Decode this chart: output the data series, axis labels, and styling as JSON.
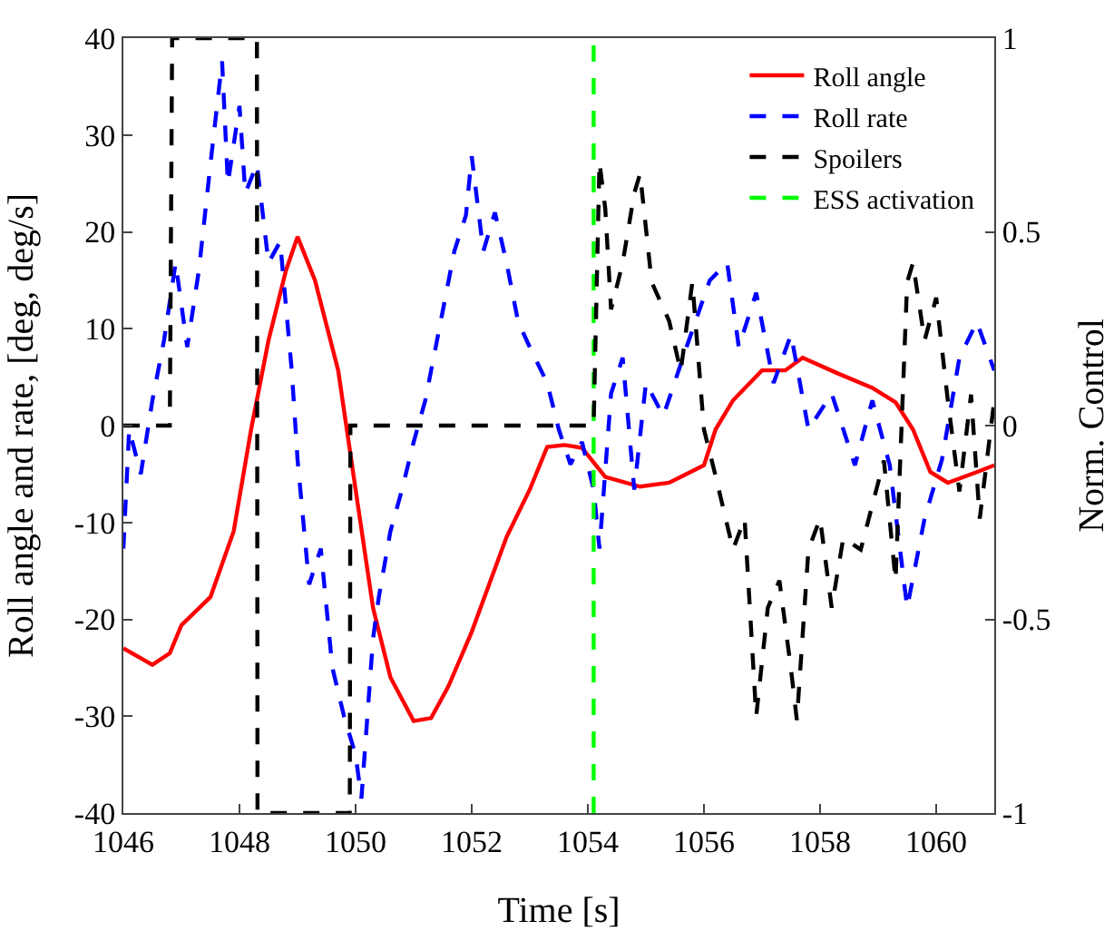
{
  "chart_data": {
    "type": "line",
    "xlabel": "Time [s]",
    "ylabel": "Roll angle and rate, [deg, deg/s]",
    "y2label": "Norm. Control",
    "xlim": [
      1046,
      1061
    ],
    "xticks": [
      1046,
      1048,
      1050,
      1052,
      1054,
      1056,
      1058,
      1060
    ],
    "ylim": [
      -40,
      40
    ],
    "yticks": [
      -40,
      -30,
      -20,
      -10,
      0,
      10,
      20,
      30,
      40
    ],
    "y2lim": [
      -1,
      1
    ],
    "y2ticks": [
      -1,
      -0.5,
      0,
      0.5,
      1
    ],
    "grid": false,
    "legend": "top right",
    "marker": "none",
    "series": [
      {
        "name": "Roll angle",
        "color": "#ff0000",
        "line_style": "solid",
        "x": [
          1046,
          1046.5,
          1046.8,
          1047,
          1047.5,
          1047.9,
          1048.2,
          1048.5,
          1048.8,
          1049,
          1049.3,
          1049.7,
          1050,
          1050.3,
          1050.6,
          1051,
          1051.3,
          1051.6,
          1052,
          1052.3,
          1052.6,
          1053,
          1053.3,
          1053.6,
          1053.9,
          1054.3,
          1054.9,
          1055.4,
          1056,
          1056.2,
          1056.5,
          1057,
          1057.4,
          1057.7,
          1058.3,
          1058.9,
          1059.3,
          1059.6,
          1059.9,
          1060.2,
          1060.7,
          1061
        ],
        "values": [
          -23,
          -24.7,
          -23.5,
          -20.6,
          -17.7,
          -10.9,
          -0.4,
          8.8,
          16,
          19.5,
          15,
          5.7,
          -6.6,
          -18.8,
          -26,
          -30.5,
          -30.2,
          -26.9,
          -21.3,
          -16.4,
          -11.5,
          -6.6,
          -2.2,
          -2,
          -2.3,
          -5.3,
          -6.3,
          -5.9,
          -4.1,
          -0.4,
          2.6,
          5.7,
          5.7,
          7,
          5.4,
          3.9,
          2.4,
          -0.4,
          -4.8,
          -5.9,
          -4.8,
          -4.1
        ]
      },
      {
        "name": "Roll rate",
        "color": "#0000ff",
        "line_style": "dashed",
        "x": [
          1046,
          1046.1,
          1046.3,
          1046.5,
          1046.7,
          1046.9,
          1047.1,
          1047.3,
          1047.5,
          1047.7,
          1047.8,
          1048,
          1048.1,
          1048.3,
          1048.5,
          1048.7,
          1048.9,
          1049,
          1049.2,
          1049.4,
          1049.6,
          1049.8,
          1050,
          1050.1,
          1050.3,
          1050.4,
          1050.6,
          1050.8,
          1051,
          1051.2,
          1051.5,
          1051.7,
          1051.9,
          1052,
          1052.2,
          1052.4,
          1052.6,
          1052.8,
          1053,
          1053.3,
          1053.5,
          1053.7,
          1053.9,
          1054.1,
          1054.2,
          1054.4,
          1054.6,
          1054.8,
          1055,
          1055.3,
          1055.7,
          1056.1,
          1056.4,
          1056.6,
          1056.9,
          1057.2,
          1057.5,
          1057.8,
          1058.2,
          1058.6,
          1058.9,
          1059.2,
          1059.5,
          1059.8,
          1060.1,
          1060.4,
          1060.7,
          1061
        ],
        "values": [
          -12.7,
          -0.4,
          -5,
          2.6,
          8.8,
          16.8,
          8.1,
          16,
          27,
          37.6,
          25,
          33,
          24,
          27,
          16.8,
          19,
          5.7,
          -3.5,
          -16.4,
          -12.7,
          -25,
          -30,
          -34,
          -38.5,
          -22,
          -17.7,
          -10.9,
          -6.6,
          -1.7,
          2.6,
          11.8,
          18,
          21.7,
          27.8,
          18,
          22,
          16.8,
          10.7,
          8.1,
          4.4,
          -0.4,
          -4,
          -1.7,
          -6.6,
          -12.7,
          3.3,
          7,
          -6.6,
          4.4,
          1,
          8.1,
          15,
          16.8,
          8.1,
          13.7,
          4.4,
          9.4,
          -0.4,
          3.3,
          -4.1,
          2.6,
          -4.1,
          -18.8,
          -9.6,
          -3.5,
          7,
          10.7,
          5.7
        ]
      },
      {
        "name": "Spoilers",
        "color": "#000000",
        "line_style": "dashed",
        "axis": "y2",
        "x": [
          1046,
          1046.8,
          1046.84,
          1048.3,
          1048.31,
          1049.9,
          1049.91,
          1054.1,
          1054.2,
          1054.3,
          1054.4,
          1054.6,
          1054.8,
          1054.9,
          1055.1,
          1055.4,
          1055.6,
          1055.8,
          1056,
          1056.2,
          1056.5,
          1056.7,
          1056.9,
          1057.1,
          1057.3,
          1057.5,
          1057.6,
          1057.8,
          1058,
          1058.2,
          1058.4,
          1058.7,
          1059.1,
          1059.3,
          1059.5,
          1059.6,
          1059.8,
          1060,
          1060.2,
          1060.4,
          1060.6,
          1060.75,
          1061
        ],
        "values": [
          0,
          0,
          1,
          1,
          -1,
          -1,
          0,
          0,
          0.68,
          0.56,
          0.3,
          0.42,
          0.6,
          0.65,
          0.37,
          0.27,
          0.14,
          0.37,
          -0.01,
          -0.13,
          -0.32,
          -0.24,
          -0.75,
          -0.47,
          -0.4,
          -0.63,
          -0.76,
          -0.32,
          -0.24,
          -0.47,
          -0.29,
          -0.32,
          -0.09,
          -0.4,
          0.37,
          0.42,
          0.22,
          0.33,
          0.065,
          -0.17,
          0.08,
          -0.24,
          0.065
        ]
      },
      {
        "name": "ESS activation",
        "color": "#00ff00",
        "line_style": "dashed",
        "x": [
          1054.1,
          1054.1
        ],
        "values": [
          -40,
          40
        ]
      }
    ]
  }
}
